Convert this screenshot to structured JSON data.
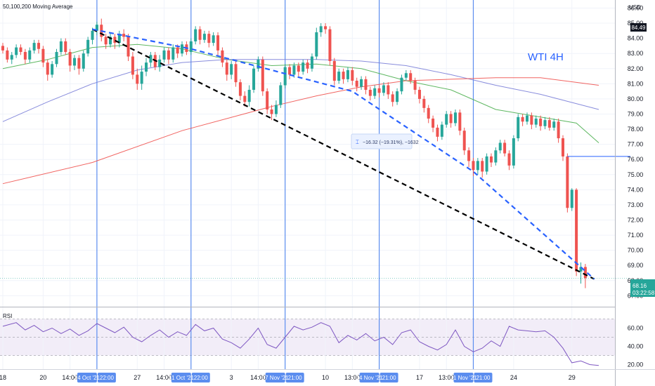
{
  "chart_data": {
    "type": "candlestick",
    "title": "WTI 4H",
    "indicator_label": "50,100,200 Moving Average",
    "currency": "USD",
    "y_axis": {
      "ylim": [
        66.6,
        86.3
      ],
      "ticks": [
        "86.00",
        "85.00",
        "84.00",
        "83.00",
        "82.00",
        "81.00",
        "80.00",
        "79.00",
        "78.00",
        "77.00",
        "76.00",
        "75.00",
        "74.00",
        "73.00",
        "72.00",
        "71.00",
        "70.00",
        "69.00",
        "68.00",
        "67.00"
      ]
    },
    "x_axis": {
      "range": [
        0,
        133
      ],
      "ticks": [
        {
          "label": "18",
          "x": 0
        },
        {
          "label": "20",
          "x": 9
        },
        {
          "label": "14:00",
          "x": 15
        },
        {
          "label": "27",
          "x": 30
        },
        {
          "label": "14:00",
          "x": 36
        },
        {
          "label": "3",
          "x": 51
        },
        {
          "label": "14:00",
          "x": 57
        },
        {
          "label": "10",
          "x": 72
        },
        {
          "label": "13:00",
          "x": 78
        },
        {
          "label": "17",
          "x": 93
        },
        {
          "label": "13:00",
          "x": 99
        },
        {
          "label": "24",
          "x": 114
        },
        {
          "label": "29",
          "x": 127
        }
      ]
    },
    "vertical_markers": [
      {
        "label": "24 Oct '21",
        "label_end": "22:00",
        "x": 21
      },
      {
        "label": "31 Oct '21",
        "label_end": "22:00",
        "x": 42
      },
      {
        "label": "07 Nov '21",
        "label_end": "21:00",
        "x": 63
      },
      {
        "label": "14 Nov '21",
        "label_end": "21:00",
        "x": 84
      },
      {
        "label": "21 Nov '21",
        "label_end": "21:00",
        "x": 105
      }
    ],
    "candles": [
      [
        83.5,
        83.2,
        83.7,
        83.0
      ],
      [
        83.2,
        82.6,
        83.4,
        82.4
      ],
      [
        82.6,
        82.9,
        83.1,
        82.3
      ],
      [
        82.9,
        83.4,
        83.6,
        82.7
      ],
      [
        83.4,
        83.1,
        83.6,
        82.9
      ],
      [
        83.1,
        82.6,
        83.3,
        82.3
      ],
      [
        82.6,
        83.2,
        83.4,
        82.4
      ],
      [
        83.2,
        83.7,
        83.9,
        83.0
      ],
      [
        83.7,
        83.3,
        83.9,
        83.0
      ],
      [
        83.3,
        82.4,
        83.5,
        82.1
      ],
      [
        82.4,
        81.6,
        82.6,
        81.2
      ],
      [
        81.6,
        82.3,
        82.5,
        81.4
      ],
      [
        82.3,
        83.1,
        83.3,
        82.1
      ],
      [
        83.1,
        83.8,
        84.0,
        82.9
      ],
      [
        83.8,
        83.1,
        84.0,
        82.9
      ],
      [
        83.1,
        82.2,
        83.3,
        81.8
      ],
      [
        82.2,
        82.7,
        82.9,
        81.9
      ],
      [
        82.7,
        82.0,
        82.9,
        81.6
      ],
      [
        82.0,
        83.0,
        83.2,
        81.8
      ],
      [
        83.0,
        83.9,
        84.1,
        82.8
      ],
      [
        83.9,
        84.5,
        84.7,
        83.6
      ],
      [
        84.5,
        84.9,
        85.1,
        84.2
      ],
      [
        84.9,
        84.1,
        85.3,
        83.8
      ],
      [
        84.1,
        83.6,
        84.3,
        83.3
      ],
      [
        83.6,
        84.1,
        84.4,
        83.4
      ],
      [
        84.1,
        83.7,
        84.3,
        83.3
      ],
      [
        83.7,
        84.3,
        84.5,
        83.4
      ],
      [
        84.3,
        84.1,
        84.6,
        83.8
      ],
      [
        84.1,
        82.8,
        84.3,
        82.5
      ],
      [
        82.8,
        81.6,
        83.1,
        81.3
      ],
      [
        81.6,
        81.0,
        82.0,
        80.6
      ],
      [
        81.0,
        81.8,
        82.2,
        80.6
      ],
      [
        81.8,
        82.4,
        82.7,
        81.5
      ],
      [
        82.4,
        82.9,
        83.1,
        82.1
      ],
      [
        82.9,
        82.1,
        83.1,
        81.9
      ],
      [
        82.1,
        82.6,
        82.9,
        81.8
      ],
      [
        82.6,
        83.2,
        83.4,
        82.4
      ],
      [
        83.2,
        82.6,
        83.4,
        82.3
      ],
      [
        82.6,
        83.4,
        83.6,
        82.4
      ],
      [
        83.4,
        83.0,
        83.6,
        82.7
      ],
      [
        83.0,
        83.6,
        83.8,
        82.8
      ],
      [
        83.6,
        83.1,
        83.8,
        82.9
      ],
      [
        83.1,
        83.8,
        84.0,
        82.9
      ],
      [
        83.8,
        84.6,
        84.8,
        83.6
      ],
      [
        84.6,
        83.9,
        84.8,
        83.6
      ],
      [
        83.9,
        84.3,
        84.5,
        83.7
      ],
      [
        84.3,
        83.7,
        84.5,
        83.4
      ],
      [
        83.7,
        84.2,
        84.4,
        83.5
      ],
      [
        84.2,
        83.2,
        84.4,
        82.8
      ],
      [
        83.2,
        82.4,
        83.4,
        82.1
      ],
      [
        82.4,
        81.6,
        82.7,
        81.2
      ],
      [
        81.6,
        82.3,
        82.5,
        81.3
      ],
      [
        82.3,
        81.1,
        82.5,
        80.8
      ],
      [
        81.1,
        80.2,
        81.3,
        79.9
      ],
      [
        80.2,
        79.8,
        80.5,
        79.5
      ],
      [
        79.8,
        80.6,
        80.9,
        79.5
      ],
      [
        80.6,
        82.0,
        82.2,
        80.4
      ],
      [
        82.0,
        82.6,
        82.8,
        81.8
      ],
      [
        82.6,
        80.5,
        82.8,
        80.2
      ],
      [
        80.5,
        79.3,
        80.7,
        79.0
      ],
      [
        79.3,
        79.0,
        79.6,
        78.6
      ],
      [
        79.0,
        79.6,
        79.9,
        78.8
      ],
      [
        79.6,
        80.9,
        81.1,
        79.4
      ],
      [
        80.9,
        82.1,
        82.3,
        80.7
      ],
      [
        82.1,
        81.6,
        82.3,
        81.3
      ],
      [
        81.6,
        82.2,
        82.4,
        81.4
      ],
      [
        82.2,
        81.8,
        82.4,
        81.5
      ],
      [
        81.8,
        82.4,
        82.6,
        81.6
      ],
      [
        82.4,
        82.0,
        82.6,
        81.7
      ],
      [
        82.0,
        82.8,
        83.0,
        81.8
      ],
      [
        82.8,
        84.4,
        84.7,
        82.6
      ],
      [
        84.4,
        84.8,
        85.0,
        84.1
      ],
      [
        84.8,
        84.6,
        85.0,
        84.3
      ],
      [
        84.6,
        82.5,
        84.8,
        82.2
      ],
      [
        82.5,
        81.2,
        82.7,
        80.9
      ],
      [
        81.2,
        81.8,
        82.0,
        81.0
      ],
      [
        81.8,
        81.3,
        82.0,
        81.0
      ],
      [
        81.3,
        81.9,
        82.1,
        81.1
      ],
      [
        81.9,
        81.2,
        82.1,
        80.9
      ],
      [
        81.2,
        80.8,
        81.4,
        80.5
      ],
      [
        80.8,
        81.3,
        81.5,
        80.6
      ],
      [
        81.3,
        80.6,
        81.5,
        80.3
      ],
      [
        80.6,
        80.2,
        80.8,
        79.9
      ],
      [
        80.2,
        80.7,
        80.9,
        80.0
      ],
      [
        80.7,
        80.4,
        80.9,
        80.1
      ],
      [
        80.4,
        80.9,
        81.1,
        80.2
      ],
      [
        80.9,
        80.3,
        81.1,
        80.0
      ],
      [
        80.3,
        79.8,
        80.5,
        79.5
      ],
      [
        79.8,
        80.5,
        80.7,
        79.6
      ],
      [
        80.5,
        81.4,
        81.6,
        80.3
      ],
      [
        81.4,
        81.7,
        81.9,
        81.2
      ],
      [
        81.7,
        81.2,
        81.9,
        81.0
      ],
      [
        81.2,
        80.6,
        81.4,
        80.3
      ],
      [
        80.6,
        80.0,
        80.8,
        79.7
      ],
      [
        80.0,
        79.4,
        80.2,
        79.1
      ],
      [
        79.4,
        78.7,
        79.6,
        78.4
      ],
      [
        78.7,
        78.1,
        78.9,
        77.8
      ],
      [
        78.1,
        77.5,
        78.3,
        77.2
      ],
      [
        77.5,
        78.3,
        78.5,
        77.3
      ],
      [
        78.3,
        79.0,
        79.2,
        78.1
      ],
      [
        79.0,
        78.4,
        79.2,
        78.1
      ],
      [
        78.4,
        79.1,
        79.3,
        78.2
      ],
      [
        79.1,
        77.9,
        79.3,
        77.6
      ],
      [
        77.9,
        76.6,
        78.1,
        76.3
      ],
      [
        76.6,
        75.9,
        76.8,
        75.5
      ],
      [
        75.9,
        75.3,
        76.1,
        74.9
      ],
      [
        75.3,
        75.9,
        76.1,
        75.0
      ],
      [
        75.9,
        75.2,
        76.1,
        74.8
      ],
      [
        75.2,
        76.2,
        76.4,
        75.0
      ],
      [
        76.2,
        75.8,
        76.4,
        75.5
      ],
      [
        75.8,
        76.6,
        76.8,
        75.6
      ],
      [
        76.6,
        77.1,
        77.3,
        76.4
      ],
      [
        77.1,
        76.4,
        77.3,
        76.2
      ],
      [
        76.4,
        75.6,
        76.6,
        75.3
      ],
      [
        75.6,
        77.4,
        77.6,
        75.4
      ],
      [
        77.4,
        78.8,
        79.0,
        77.2
      ],
      [
        78.8,
        78.5,
        79.0,
        78.2
      ],
      [
        78.5,
        78.9,
        79.1,
        78.3
      ],
      [
        78.9,
        78.3,
        79.1,
        78.0
      ],
      [
        78.3,
        78.7,
        78.9,
        78.1
      ],
      [
        78.7,
        78.2,
        78.9,
        77.9
      ],
      [
        78.2,
        78.6,
        78.8,
        78.0
      ],
      [
        78.6,
        78.1,
        78.8,
        77.9
      ],
      [
        78.1,
        78.5,
        78.7,
        77.9
      ],
      [
        78.5,
        77.4,
        78.7,
        77.1
      ],
      [
        77.4,
        76.2,
        77.6,
        75.9
      ],
      [
        76.2,
        72.8,
        76.4,
        72.5
      ],
      [
        72.8,
        74.0,
        74.1,
        72.6
      ],
      [
        74.0,
        68.6,
        74.1,
        68.3
      ],
      [
        68.6,
        68.9,
        69.2,
        67.8
      ],
      [
        68.9,
        68.16,
        69.1,
        67.5
      ]
    ],
    "moving_averages": [
      {
        "period": 50,
        "color": "#4caf50",
        "points": [
          [
            0,
            82.0
          ],
          [
            10,
            82.6
          ],
          [
            20,
            83.4
          ],
          [
            30,
            83.6
          ],
          [
            40,
            83.3
          ],
          [
            50,
            82.6
          ],
          [
            60,
            82.2
          ],
          [
            70,
            82.3
          ],
          [
            80,
            82.0
          ],
          [
            90,
            81.2
          ],
          [
            100,
            80.6
          ],
          [
            110,
            79.3
          ],
          [
            120,
            78.8
          ],
          [
            128,
            78.4
          ],
          [
            133,
            77.1
          ]
        ]
      },
      {
        "period": 100,
        "color": "#7b7fd8",
        "points": [
          [
            0,
            78.5
          ],
          [
            10,
            79.8
          ],
          [
            20,
            81.0
          ],
          [
            30,
            81.9
          ],
          [
            40,
            82.4
          ],
          [
            50,
            82.6
          ],
          [
            60,
            82.6
          ],
          [
            70,
            82.6
          ],
          [
            80,
            82.5
          ],
          [
            90,
            82.2
          ],
          [
            100,
            81.6
          ],
          [
            110,
            80.9
          ],
          [
            120,
            80.3
          ],
          [
            133,
            79.3
          ]
        ]
      },
      {
        "period": 200,
        "color": "#ef5350",
        "points": [
          [
            0,
            74.4
          ],
          [
            20,
            75.8
          ],
          [
            40,
            77.9
          ],
          [
            60,
            79.5
          ],
          [
            70,
            80.2
          ],
          [
            80,
            80.8
          ],
          [
            90,
            81.2
          ],
          [
            100,
            81.3
          ],
          [
            110,
            81.4
          ],
          [
            120,
            81.4
          ],
          [
            133,
            80.9
          ]
        ]
      }
    ],
    "trend_lines": [
      {
        "style": "black-dashed",
        "points": [
          [
            20,
            84.6
          ],
          [
            132,
            68.1
          ]
        ]
      },
      {
        "style": "blue-dashed",
        "points": [
          [
            20,
            84.6
          ],
          [
            42,
            83.3
          ],
          [
            78,
            80.5
          ],
          [
            105,
            75.2
          ],
          [
            132,
            68.1
          ]
        ]
      }
    ],
    "horizontal_line": {
      "y": 76.2,
      "x_start": 126
    },
    "measure_label": "−16.32 (−19.31%), −1632",
    "last_price_tag": "84.49",
    "current_price_tag": "68.16",
    "countdown_tag": "03:22:58",
    "rsi": {
      "label": "RSI",
      "ticks": [
        "60.00",
        "40.00",
        "20.00"
      ],
      "band": [
        30,
        70
      ],
      "ylim": [
        15,
        75
      ],
      "points": [
        [
          0,
          62
        ],
        [
          3,
          66
        ],
        [
          5,
          58
        ],
        [
          7,
          63
        ],
        [
          9,
          56
        ],
        [
          11,
          60
        ],
        [
          13,
          54
        ],
        [
          15,
          59
        ],
        [
          17,
          52
        ],
        [
          19,
          57
        ],
        [
          21,
          65
        ],
        [
          23,
          60
        ],
        [
          25,
          55
        ],
        [
          27,
          61
        ],
        [
          29,
          50
        ],
        [
          31,
          45
        ],
        [
          33,
          52
        ],
        [
          35,
          58
        ],
        [
          37,
          50
        ],
        [
          39,
          56
        ],
        [
          41,
          52
        ],
        [
          43,
          64
        ],
        [
          45,
          57
        ],
        [
          47,
          60
        ],
        [
          49,
          48
        ],
        [
          51,
          44
        ],
        [
          53,
          38
        ],
        [
          55,
          48
        ],
        [
          57,
          60
        ],
        [
          59,
          42
        ],
        [
          61,
          38
        ],
        [
          63,
          50
        ],
        [
          65,
          62
        ],
        [
          67,
          58
        ],
        [
          69,
          61
        ],
        [
          71,
          66
        ],
        [
          73,
          62
        ],
        [
          75,
          44
        ],
        [
          77,
          52
        ],
        [
          79,
          47
        ],
        [
          81,
          54
        ],
        [
          83,
          46
        ],
        [
          85,
          50
        ],
        [
          87,
          42
        ],
        [
          89,
          55
        ],
        [
          91,
          58
        ],
        [
          93,
          45
        ],
        [
          95,
          40
        ],
        [
          97,
          36
        ],
        [
          99,
          42
        ],
        [
          101,
          58
        ],
        [
          103,
          40
        ],
        [
          105,
          34
        ],
        [
          107,
          38
        ],
        [
          109,
          46
        ],
        [
          111,
          40
        ],
        [
          113,
          62
        ],
        [
          115,
          58
        ],
        [
          117,
          57
        ],
        [
          119,
          56
        ],
        [
          121,
          57
        ],
        [
          123,
          50
        ],
        [
          125,
          38
        ],
        [
          127,
          22
        ],
        [
          129,
          24
        ],
        [
          131,
          20
        ],
        [
          133,
          19
        ]
      ]
    }
  }
}
